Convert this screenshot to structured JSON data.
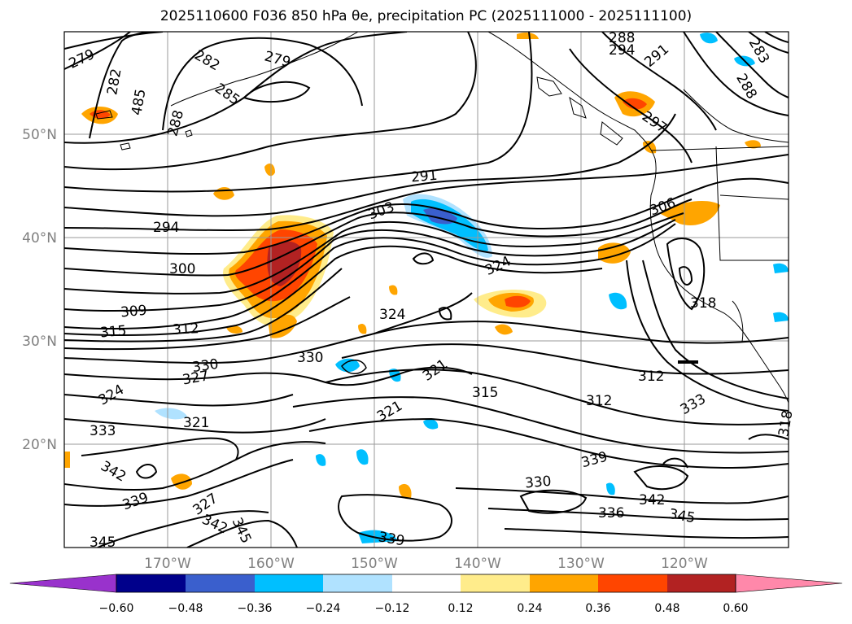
{
  "title": "2025110600 F036 850 hPa θe, precipitation PC (2025111000 - 2025111100)",
  "lat_labels": [
    "50°N",
    "40°N",
    "30°N",
    "20°N"
  ],
  "lon_labels": [
    "170°W",
    "160°W",
    "150°W",
    "140°W",
    "130°W",
    "120°W"
  ],
  "colorbar": {
    "ticks": [
      "−0.60",
      "−0.48",
      "−0.36",
      "−0.24",
      "−0.12",
      "0.12",
      "0.24",
      "0.36",
      "0.48",
      "0.60"
    ],
    "colors": [
      "#9932CC",
      "#00008B",
      "#3A5FCD",
      "#00BFFF",
      "#B0E2FF",
      "#FFFFFF",
      "#FFEC8B",
      "#FFA500",
      "#FF4500",
      "#B22222",
      "#FF88AA"
    ]
  },
  "contour_labels": [
    "279",
    "282",
    "485",
    "288",
    "282",
    "285",
    "279",
    "288",
    "294",
    "291",
    "283",
    "288",
    "297",
    "291",
    "303",
    "294",
    "300",
    "324",
    "306",
    "309",
    "312",
    "315",
    "324",
    "318",
    "330",
    "330",
    "327",
    "324",
    "321",
    "321",
    "315",
    "312",
    "312",
    "333",
    "333",
    "321",
    "318",
    "339",
    "342",
    "339",
    "327",
    "330",
    "342",
    "336",
    "345",
    "342",
    "345",
    "339",
    "345"
  ],
  "colors": {
    "grid": "#9a9a9a",
    "axis_tick_text": "#808080"
  }
}
